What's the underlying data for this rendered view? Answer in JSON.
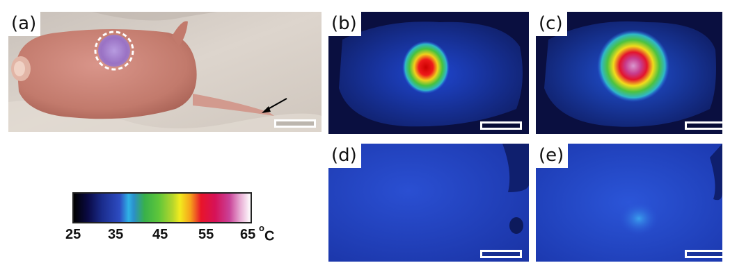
{
  "panels": [
    {
      "id": "a",
      "label": "(a)",
      "content": "photo-mouse"
    },
    {
      "id": "b",
      "label": "(b)",
      "content": "thermal-hot-spot"
    },
    {
      "id": "c",
      "label": "(c)",
      "content": "thermal-hotter-spot"
    },
    {
      "id": "d",
      "label": "(d)",
      "content": "thermal-control"
    },
    {
      "id": "e",
      "label": "(e)",
      "content": "thermal-faint"
    }
  ],
  "colorbar": {
    "ticks": [
      "25",
      "35",
      "45",
      "55",
      "65"
    ],
    "unit_prefix": "o",
    "unit": "C",
    "colors": [
      "#000000",
      "#1a2c8c",
      "#2fb2e6",
      "#38b04a",
      "#f2ec1e",
      "#e8142a",
      "#c94197",
      "#ffffff"
    ]
  }
}
